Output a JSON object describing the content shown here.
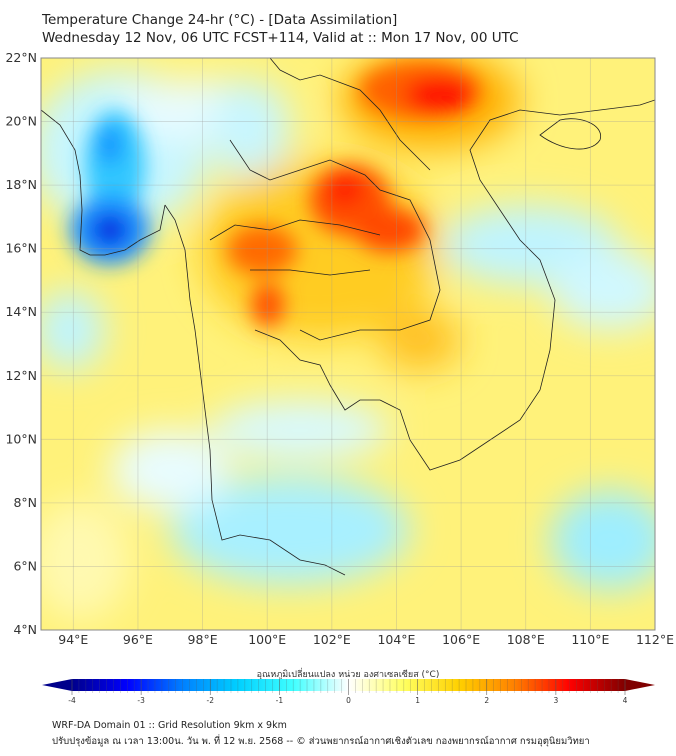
{
  "header": {
    "title": "Temperature Change 24-hr (°C) - [Data Assimilation]",
    "subtitle": "Wednesday 12 Nov, 06 UTC FCST+114, Valid at :: Mon 17 Nov, 00 UTC"
  },
  "map": {
    "lat_range": [
      4,
      22
    ],
    "lon_range": [
      93,
      112
    ],
    "lat_labels": [
      "4°N",
      "6°N",
      "8°N",
      "10°N",
      "12°N",
      "14°N",
      "16°N",
      "18°N",
      "20°N",
      "22°N"
    ],
    "lon_labels": [
      "94°E",
      "96°E",
      "98°E",
      "100°E",
      "102°E",
      "104°E",
      "106°E",
      "108°E",
      "110°E",
      "112°E"
    ]
  },
  "colorbar": {
    "title": "อุณหภูมิเปลี่ยนแปลง หน่วย องศาเซลเซียส (°C)",
    "range": [
      -4,
      4
    ],
    "ticks": [
      "-4",
      "-3",
      "-2",
      "-1",
      "0",
      "1",
      "2",
      "3",
      "4"
    ],
    "colors": [
      "#00008b",
      "#0000ff",
      "#0080ff",
      "#00d0ff",
      "#40ffff",
      "#ffffff",
      "#ffff60",
      "#ffd000",
      "#ff8000",
      "#ff0000",
      "#800000"
    ]
  },
  "footer": {
    "line1": "WRF-DA Domain 01 :: Grid Resolution 9km x 9km",
    "line2": "ปรับปรุงข้อมูล ณ เวลา 13:00น. วัน พ. ที่ 12 พ.ย. 2568 -- © ส่วนพยากรณ์อากาศเชิงตัวเลข กองพยากรณ์อากาศ กรมอุตุนิยมวิทยา"
  }
}
